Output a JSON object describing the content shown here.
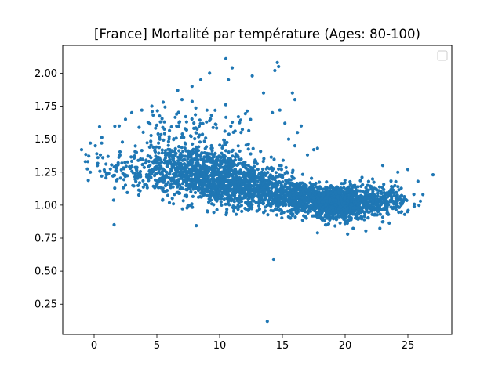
{
  "chart_data": {
    "type": "scatter",
    "title": "[France] Mortalité par température (Ages: 80-100)",
    "xlabel": "",
    "ylabel": "",
    "xlim": [
      -2.5,
      28.5
    ],
    "ylim": [
      0.02,
      2.21
    ],
    "x_ticks": [
      0,
      5,
      10,
      15,
      20,
      25
    ],
    "y_ticks": [
      0.25,
      0.5,
      0.75,
      1.0,
      1.25,
      1.5,
      1.75,
      2.0
    ],
    "y_tick_labels": [
      "0.25",
      "0.50",
      "0.75",
      "1.00",
      "1.25",
      "1.50",
      "1.75",
      "2.00"
    ],
    "grid": false,
    "legend": {
      "placement": "top-right",
      "entries": []
    },
    "point_color": "#1f77b4",
    "series": [
      {
        "color": "#1f77b4",
        "clusters": [
          {
            "x_mean": 5.0,
            "y_mean": 1.27,
            "x_sd": 2.2,
            "y_sd": 0.1,
            "count": 300
          },
          {
            "x_mean": 9.0,
            "y_mean": 1.23,
            "x_sd": 1.7,
            "y_sd": 0.1,
            "count": 750
          },
          {
            "x_mean": 12.5,
            "y_mean": 1.14,
            "x_sd": 1.7,
            "y_sd": 0.08,
            "count": 650
          },
          {
            "x_mean": 16.5,
            "y_mean": 1.06,
            "x_sd": 1.3,
            "y_sd": 0.06,
            "count": 550
          },
          {
            "x_mean": 19.5,
            "y_mean": 1.01,
            "x_sd": 1.3,
            "y_sd": 0.06,
            "count": 750
          },
          {
            "x_mean": 22.5,
            "y_mean": 1.03,
            "x_sd": 1.3,
            "y_sd": 0.06,
            "count": 300
          },
          {
            "x_mean": 7.5,
            "y_mean": 1.55,
            "x_sd": 2.8,
            "y_sd": 0.12,
            "count": 140
          }
        ],
        "points": [
          {
            "x": -1.0,
            "y": 1.42
          },
          {
            "x": -0.5,
            "y": 1.33
          },
          {
            "x": -0.3,
            "y": 1.47
          },
          {
            "x": 0.1,
            "y": 1.45
          },
          {
            "x": 0.5,
            "y": 1.38
          },
          {
            "x": 0.6,
            "y": 1.47
          },
          {
            "x": 0.6,
            "y": 1.22
          },
          {
            "x": -0.3,
            "y": 1.25
          },
          {
            "x": 0.3,
            "y": 1.36
          },
          {
            "x": -0.7,
            "y": 1.33
          },
          {
            "x": 1.5,
            "y": 1.22
          },
          {
            "x": 1.8,
            "y": 1.28
          },
          {
            "x": 2.0,
            "y": 1.6
          },
          {
            "x": 2.5,
            "y": 1.65
          },
          {
            "x": 3.0,
            "y": 1.7
          },
          {
            "x": 3.8,
            "y": 1.72
          },
          {
            "x": 4.6,
            "y": 1.75
          },
          {
            "x": 5.5,
            "y": 1.78
          },
          {
            "x": 7.0,
            "y": 1.8
          },
          {
            "x": 7.8,
            "y": 1.9
          },
          {
            "x": 8.5,
            "y": 1.95
          },
          {
            "x": 9.2,
            "y": 2.0
          },
          {
            "x": 10.5,
            "y": 2.11
          },
          {
            "x": 10.7,
            "y": 1.95
          },
          {
            "x": 11.0,
            "y": 2.04
          },
          {
            "x": 12.6,
            "y": 1.98
          },
          {
            "x": 14.6,
            "y": 2.08
          },
          {
            "x": 14.7,
            "y": 2.05
          },
          {
            "x": 14.4,
            "y": 2.02
          },
          {
            "x": 13.5,
            "y": 1.85
          },
          {
            "x": 14.2,
            "y": 1.7
          },
          {
            "x": 14.8,
            "y": 1.72
          },
          {
            "x": 15.8,
            "y": 1.85
          },
          {
            "x": 16.0,
            "y": 1.8
          },
          {
            "x": 16.5,
            "y": 1.6
          },
          {
            "x": 16.2,
            "y": 1.55
          },
          {
            "x": 15.5,
            "y": 1.5
          },
          {
            "x": 16.0,
            "y": 1.45
          },
          {
            "x": 17.5,
            "y": 1.42
          },
          {
            "x": 17.8,
            "y": 1.43
          },
          {
            "x": 17.0,
            "y": 1.38
          },
          {
            "x": 15.2,
            "y": 1.62
          },
          {
            "x": 14.3,
            "y": 0.59
          },
          {
            "x": 13.8,
            "y": 0.12
          },
          {
            "x": 17.8,
            "y": 0.79
          },
          {
            "x": 20.2,
            "y": 0.78
          },
          {
            "x": 18.5,
            "y": 0.85
          },
          {
            "x": 23.0,
            "y": 1.3
          },
          {
            "x": 24.2,
            "y": 1.25
          },
          {
            "x": 25.0,
            "y": 1.27
          },
          {
            "x": 25.8,
            "y": 1.18
          },
          {
            "x": 26.2,
            "y": 1.08
          },
          {
            "x": 27.0,
            "y": 1.23
          },
          {
            "x": 26.0,
            "y": 1.03
          },
          {
            "x": 25.5,
            "y": 0.99
          },
          {
            "x": 24.5,
            "y": 0.95
          }
        ]
      }
    ]
  }
}
